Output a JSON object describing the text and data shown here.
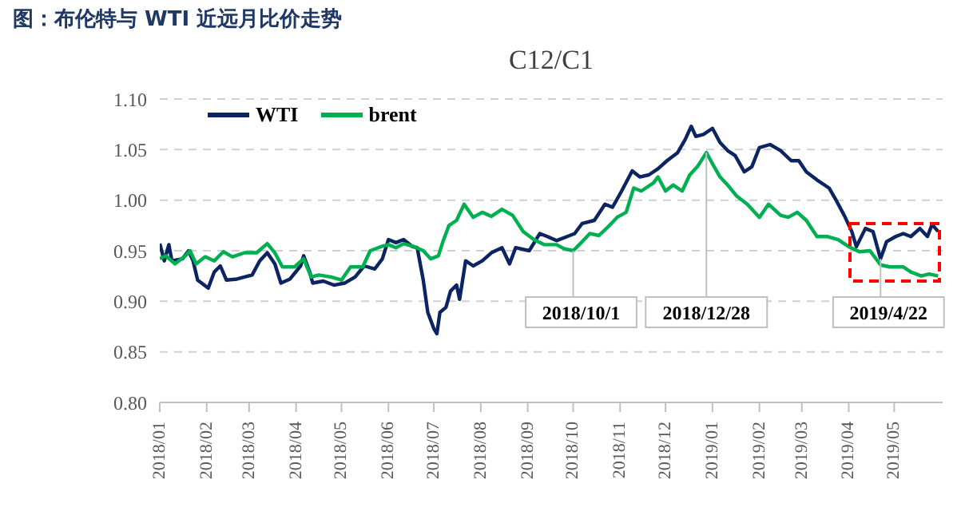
{
  "chart_data": {
    "type": "line",
    "title": "图：布伦特与 WTI 近远月比价走势",
    "subtitle": "C12/C1",
    "xlim": [
      "2018-01-01",
      "2019-06-02"
    ],
    "xticks": [
      {
        "value": "2018-01",
        "label": "2018/01"
      },
      {
        "value": "2018-02",
        "label": "2018/02"
      },
      {
        "value": "2018-03",
        "label": "2018/03"
      },
      {
        "value": "2018-04",
        "label": "2018/04"
      },
      {
        "value": "2018-05",
        "label": "2018/05"
      },
      {
        "value": "2018-06",
        "label": "2018/06"
      },
      {
        "value": "2018-07",
        "label": "2018/07"
      },
      {
        "value": "2018-08",
        "label": "2018/08"
      },
      {
        "value": "2018-09",
        "label": "2018/09"
      },
      {
        "value": "2018-10",
        "label": "2018/10"
      },
      {
        "value": "2018-11",
        "label": "2018/11"
      },
      {
        "value": "2018-12",
        "label": "2018/12"
      },
      {
        "value": "2019-01",
        "label": "2019/01"
      },
      {
        "value": "2019-02",
        "label": "2019/02"
      },
      {
        "value": "2019-03",
        "label": "2019/03"
      },
      {
        "value": "2019-04",
        "label": "2019/04"
      },
      {
        "value": "2019-05",
        "label": "2019/05"
      }
    ],
    "ylim": [
      0.8,
      1.1
    ],
    "yticks": [
      {
        "value": 0.8,
        "label": "0.80"
      },
      {
        "value": 0.85,
        "label": "0.85"
      },
      {
        "value": 0.9,
        "label": "0.90"
      },
      {
        "value": 0.95,
        "label": "0.95"
      },
      {
        "value": 1.0,
        "label": "1.00"
      },
      {
        "value": 1.05,
        "label": "1.05"
      },
      {
        "value": 1.1,
        "label": "1.10"
      }
    ],
    "grid": "y",
    "legend": "top left",
    "marker": "none",
    "line_style": "solid",
    "series": [
      {
        "name": "WTI",
        "color": "#0c2461",
        "x": [
          "2018-01-01",
          "2018-01-04",
          "2018-01-07",
          "2018-01-09",
          "2018-01-16",
          "2018-01-20",
          "2018-01-23",
          "2018-01-26",
          "2018-02-02",
          "2018-02-06",
          "2018-02-10",
          "2018-02-14",
          "2018-02-21",
          "2018-03-03",
          "2018-03-08",
          "2018-03-13",
          "2018-03-18",
          "2018-03-22",
          "2018-03-28",
          "2018-04-04",
          "2018-04-06",
          "2018-04-10",
          "2018-04-12",
          "2018-04-19",
          "2018-04-26",
          "2018-05-03",
          "2018-05-10",
          "2018-05-16",
          "2018-05-23",
          "2018-05-28",
          "2018-06-01",
          "2018-06-06",
          "2018-06-11",
          "2018-06-17",
          "2018-06-20",
          "2018-06-24",
          "2018-06-27",
          "2018-07-01",
          "2018-07-03",
          "2018-07-05",
          "2018-07-09",
          "2018-07-12",
          "2018-07-16",
          "2018-07-18",
          "2018-07-22",
          "2018-07-27",
          "2018-08-02",
          "2018-08-08",
          "2018-08-15",
          "2018-08-20",
          "2018-08-24",
          "2018-09-02",
          "2018-09-09",
          "2018-09-14",
          "2018-09-20",
          "2018-09-27",
          "2018-10-02",
          "2018-10-07",
          "2018-10-15",
          "2018-10-22",
          "2018-10-27",
          "2018-11-02",
          "2018-11-09",
          "2018-11-14",
          "2018-11-20",
          "2018-11-26",
          "2018-12-02",
          "2018-12-09",
          "2018-12-14",
          "2018-12-18",
          "2018-12-21",
          "2018-12-26",
          "2019-01-01",
          "2019-01-06",
          "2019-01-11",
          "2019-01-16",
          "2019-01-22",
          "2019-01-27",
          "2019-02-01",
          "2019-02-08",
          "2019-02-15",
          "2019-02-22",
          "2019-02-27",
          "2019-03-04",
          "2019-03-11",
          "2019-03-19",
          "2019-03-24",
          "2019-03-29",
          "2019-04-03",
          "2019-04-06",
          "2019-04-12",
          "2019-04-17",
          "2019-04-22",
          "2019-04-26",
          "2019-05-02",
          "2019-05-07",
          "2019-05-12",
          "2019-05-18",
          "2019-05-23",
          "2019-05-26",
          "2019-05-30"
        ],
        "values": [
          0.957,
          0.94,
          0.956,
          0.94,
          0.942,
          0.95,
          0.94,
          0.921,
          0.913,
          0.929,
          0.935,
          0.921,
          0.922,
          0.926,
          0.94,
          0.948,
          0.937,
          0.918,
          0.922,
          0.935,
          0.945,
          0.929,
          0.918,
          0.92,
          0.916,
          0.918,
          0.924,
          0.935,
          0.932,
          0.942,
          0.961,
          0.958,
          0.961,
          0.954,
          0.953,
          0.921,
          0.889,
          0.873,
          0.868,
          0.889,
          0.894,
          0.91,
          0.916,
          0.902,
          0.94,
          0.935,
          0.94,
          0.948,
          0.953,
          0.937,
          0.953,
          0.95,
          0.967,
          0.964,
          0.96,
          0.964,
          0.967,
          0.977,
          0.98,
          0.996,
          0.993,
          1.009,
          1.029,
          1.023,
          1.025,
          1.031,
          1.039,
          1.047,
          1.06,
          1.073,
          1.063,
          1.065,
          1.071,
          1.057,
          1.049,
          1.044,
          1.028,
          1.033,
          1.052,
          1.055,
          1.049,
          1.039,
          1.039,
          1.028,
          1.02,
          1.012,
          0.999,
          0.985,
          0.969,
          0.954,
          0.972,
          0.969,
          0.942,
          0.959,
          0.964,
          0.967,
          0.964,
          0.972,
          0.964,
          0.976,
          0.969
        ]
      },
      {
        "name": "brent",
        "color": "#00b050",
        "x": [
          "2018-01-01",
          "2018-01-05",
          "2018-01-11",
          "2018-01-18",
          "2018-01-21",
          "2018-01-25",
          "2018-01-31",
          "2018-02-06",
          "2018-02-12",
          "2018-02-18",
          "2018-02-26",
          "2018-03-06",
          "2018-03-13",
          "2018-03-18",
          "2018-03-23",
          "2018-03-31",
          "2018-04-06",
          "2018-04-11",
          "2018-04-16",
          "2018-04-24",
          "2018-05-01",
          "2018-05-07",
          "2018-05-15",
          "2018-05-20",
          "2018-05-27",
          "2018-06-01",
          "2018-06-06",
          "2018-06-11",
          "2018-06-18",
          "2018-06-24",
          "2018-06-29",
          "2018-07-04",
          "2018-07-07",
          "2018-07-11",
          "2018-07-16",
          "2018-07-21",
          "2018-07-27",
          "2018-08-02",
          "2018-08-08",
          "2018-08-15",
          "2018-08-22",
          "2018-08-29",
          "2018-09-05",
          "2018-09-12",
          "2018-09-20",
          "2018-09-25",
          "2018-10-01",
          "2018-10-07",
          "2018-10-12",
          "2018-10-18",
          "2018-10-25",
          "2018-10-30",
          "2018-11-05",
          "2018-11-10",
          "2018-11-15",
          "2018-11-23",
          "2018-11-26",
          "2018-12-01",
          "2018-12-06",
          "2018-12-12",
          "2018-12-17",
          "2018-12-22",
          "2018-12-28",
          "2019-01-01",
          "2019-01-06",
          "2019-01-11",
          "2019-01-17",
          "2019-01-24",
          "2019-02-01",
          "2019-02-07",
          "2019-02-15",
          "2019-02-20",
          "2019-02-26",
          "2019-03-04",
          "2019-03-11",
          "2019-03-18",
          "2019-03-25",
          "2019-04-01",
          "2019-04-08",
          "2019-04-15",
          "2019-04-22",
          "2019-04-28",
          "2019-05-07",
          "2019-05-12",
          "2019-05-19",
          "2019-05-24",
          "2019-05-30"
        ],
        "values": [
          0.942,
          0.945,
          0.937,
          0.945,
          0.95,
          0.937,
          0.944,
          0.94,
          0.949,
          0.944,
          0.948,
          0.948,
          0.957,
          0.948,
          0.934,
          0.934,
          0.942,
          0.924,
          0.926,
          0.924,
          0.921,
          0.934,
          0.934,
          0.95,
          0.954,
          0.956,
          0.953,
          0.957,
          0.954,
          0.95,
          0.942,
          0.945,
          0.959,
          0.975,
          0.98,
          0.996,
          0.983,
          0.988,
          0.984,
          0.991,
          0.985,
          0.969,
          0.961,
          0.956,
          0.956,
          0.952,
          0.95,
          0.959,
          0.967,
          0.965,
          0.975,
          0.983,
          0.988,
          1.012,
          1.009,
          1.017,
          1.023,
          1.009,
          1.015,
          1.009,
          1.025,
          1.033,
          1.047,
          1.036,
          1.023,
          1.015,
          1.004,
          0.996,
          0.983,
          0.996,
          0.985,
          0.983,
          0.988,
          0.98,
          0.964,
          0.964,
          0.961,
          0.954,
          0.949,
          0.95,
          0.936,
          0.934,
          0.934,
          0.929,
          0.925,
          0.927,
          0.925
        ]
      }
    ],
    "annotations": [
      {
        "text": "2018/10/1",
        "x": "2018-10-01",
        "y": 0.95
      },
      {
        "text": "2018/12/28",
        "x": "2018-12-28",
        "y": 1.047
      },
      {
        "text": "2019/4/22",
        "x": "2019-04-22",
        "y": 0.942
      }
    ]
  }
}
